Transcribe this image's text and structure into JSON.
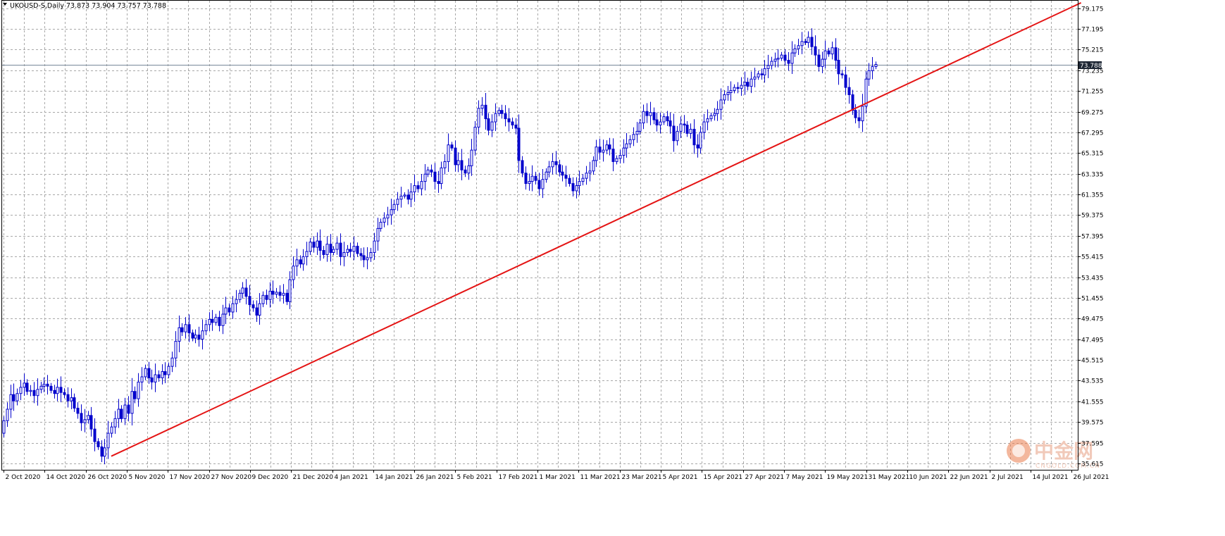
{
  "header": {
    "symbol_line": "UKOUSD-S,Daily  73.873 73.904 73.757 73.788"
  },
  "watermark": {
    "cn_text": "中金网",
    "url_text": "CNGOLD.COM.CN"
  },
  "colors": {
    "candle": "#0000cc",
    "trendline": "#e41414",
    "grid": "#a8a8a8",
    "price_line": "#778899",
    "price_box": "#1c2533",
    "watermark": "#f1c9b9",
    "watermark_logo": "#e97b4d"
  },
  "chart_data": {
    "type": "candlestick",
    "title": "UKOUSD-S,Daily",
    "ohlc_header": {
      "open": 73.873,
      "high": 73.904,
      "low": 73.757,
      "close": 73.788
    },
    "current_price": 73.788,
    "ylim": [
      35.0,
      79.9
    ],
    "y_tick_labels": [
      "79.175",
      "77.195",
      "75.215",
      "73.235",
      "71.255",
      "69.275",
      "67.295",
      "65.315",
      "63.335",
      "61.355",
      "59.375",
      "57.395",
      "55.415",
      "53.435",
      "51.455",
      "49.475",
      "47.495",
      "45.515",
      "43.535",
      "41.555",
      "39.575",
      "37.595",
      "35.615"
    ],
    "x_tick_labels": [
      "2 Oct 2020",
      "14 Oct 2020",
      "26 Oct 2020",
      "5 Nov 2020",
      "17 Nov 2020",
      "27 Nov 2020",
      "9 Dec 2020",
      "21 Dec 2020",
      "4 Jan 2021",
      "14 Jan 2021",
      "26 Jan 2021",
      "5 Feb 2021",
      "17 Feb 2021",
      "1 Mar 2021",
      "11 Mar 2021",
      "23 Mar 2021",
      "5 Apr 2021",
      "15 Apr 2021",
      "27 Apr 2021",
      "7 May 2021",
      "19 May 2021",
      "31 May 2021",
      "10 Jun 2021",
      "22 Jun 2021",
      "2 Jul 2021",
      "14 Jul 2021",
      "26 Jul 2021"
    ],
    "grid": true,
    "trendline": {
      "start_index": 32,
      "start_price": 36.3,
      "end_index": 320,
      "end_price": 79.7
    },
    "closes": [
      39.7,
      40.8,
      42.2,
      41.6,
      42.3,
      42.9,
      43.3,
      42.5,
      42.6,
      42.1,
      42.7,
      43.0,
      43.2,
      43.0,
      42.6,
      42.3,
      42.9,
      42.4,
      42.2,
      41.6,
      41.9,
      40.9,
      40.4,
      39.5,
      39.8,
      40.2,
      38.9,
      37.7,
      37.2,
      36.3,
      37.1,
      38.5,
      39.1,
      39.9,
      40.8,
      39.9,
      41.2,
      40.4,
      42.5,
      41.8,
      43.4,
      43.9,
      44.7,
      43.8,
      43.4,
      44.1,
      43.8,
      44.4,
      44.1,
      44.9,
      45.7,
      47.3,
      48.6,
      48.2,
      48.9,
      48.1,
      47.6,
      47.9,
      47.5,
      48.3,
      48.9,
      49.4,
      49.1,
      49.6,
      48.8,
      49.9,
      50.5,
      50.1,
      50.9,
      51.3,
      51.9,
      52.4,
      51.6,
      50.8,
      50.5,
      49.8,
      50.9,
      51.7,
      51.3,
      52.1,
      51.8,
      52.0,
      51.7,
      51.9,
      51.1,
      53.2,
      54.5,
      55.1,
      54.7,
      55.4,
      55.9,
      56.8,
      56.3,
      56.9,
      56.0,
      55.6,
      56.6,
      55.8,
      56.1,
      56.7,
      55.4,
      55.8,
      56.1,
      55.9,
      56.4,
      55.7,
      55.5,
      55.1,
      55.3,
      55.8,
      56.9,
      58.1,
      58.7,
      59.1,
      59.4,
      59.9,
      60.4,
      60.9,
      61.2,
      61.3,
      60.9,
      61.6,
      62.2,
      61.9,
      62.6,
      63.3,
      63.7,
      63.5,
      62.6,
      62.4,
      63.9,
      64.5,
      66.1,
      65.8,
      64.2,
      64.6,
      63.7,
      63.4,
      64.1,
      65.6,
      67.8,
      69.6,
      69.9,
      68.6,
      67.5,
      68.3,
      69.1,
      69.4,
      69.1,
      68.6,
      68.3,
      68.0,
      67.7,
      64.6,
      63.4,
      62.4,
      62.6,
      63.1,
      62.7,
      61.9,
      62.8,
      63.5,
      64.0,
      64.5,
      64.2,
      63.5,
      63.2,
      62.9,
      62.4,
      61.7,
      62.2,
      62.6,
      62.9,
      63.4,
      63.6,
      64.6,
      65.9,
      65.4,
      65.6,
      66.1,
      65.7,
      64.5,
      64.8,
      65.1,
      65.8,
      66.2,
      66.6,
      67.1,
      67.4,
      68.2,
      69.3,
      68.9,
      69.2,
      68.5,
      68.0,
      68.3,
      68.8,
      68.4,
      67.9,
      66.5,
      67.4,
      68.1,
      68.0,
      67.2,
      67.6,
      66.1,
      65.8,
      67.3,
      68.3,
      68.6,
      68.9,
      69.1,
      69.5,
      70.4,
      70.9,
      71.1,
      71.3,
      71.6,
      71.5,
      71.8,
      72.1,
      71.7,
      72.4,
      72.6,
      72.9,
      72.8,
      73.4,
      73.7,
      74.1,
      74.3,
      74.4,
      74.7,
      74.2,
      73.9,
      74.9,
      75.3,
      75.6,
      76.0,
      75.9,
      76.4,
      75.5,
      74.7,
      73.6,
      74.3,
      75.1,
      74.8,
      75.4,
      74.2,
      72.9,
      72.8,
      71.6,
      70.9,
      69.4,
      68.7,
      68.4,
      69.8,
      72.4,
      73.2,
      73.6,
      73.8
    ]
  }
}
